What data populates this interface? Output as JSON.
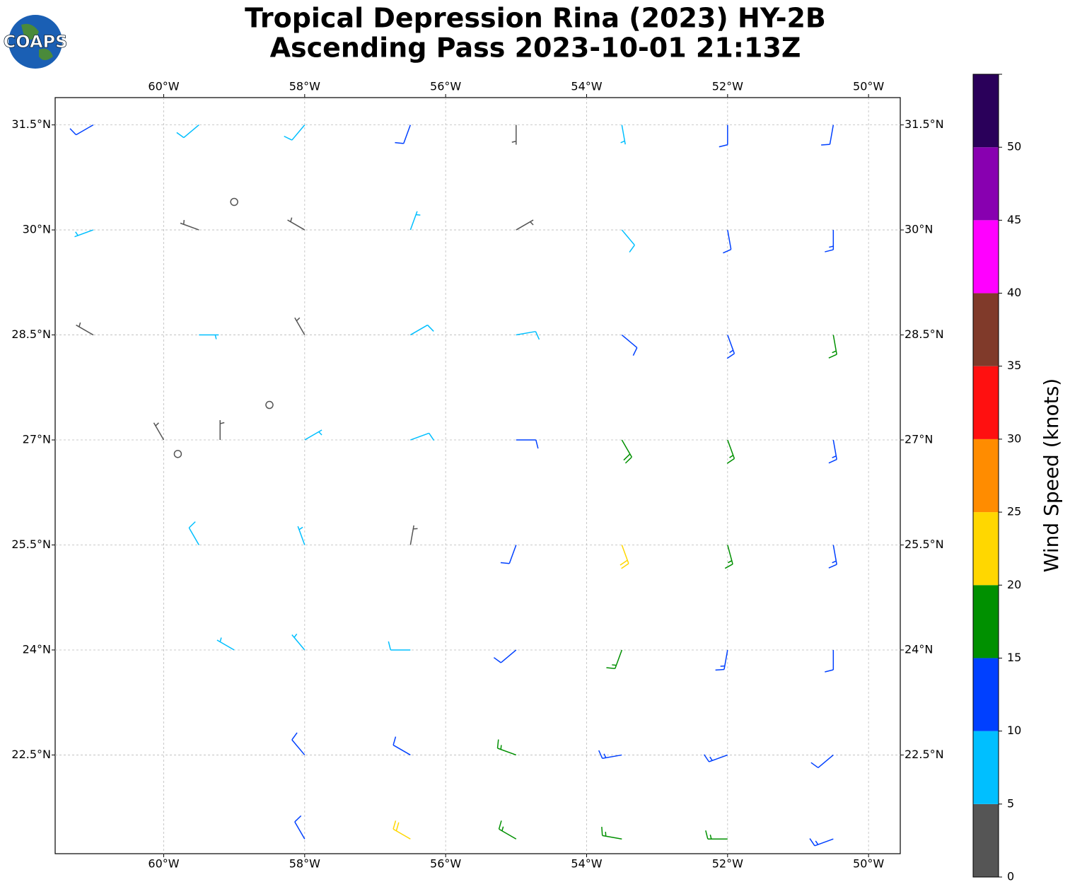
{
  "chart_data": {
    "type": "barbs",
    "title": [
      "Tropical Depression Rina (2023) HY-2B",
      "Ascending Pass 2023-10-01 21:13Z"
    ],
    "logo": "COAPS",
    "xlim": [
      -61.54,
      -49.55
    ],
    "ylim": [
      21.09,
      31.89
    ],
    "xticks": [
      {
        "value": -60,
        "label": "60°W"
      },
      {
        "value": -58,
        "label": "58°W"
      },
      {
        "value": -56,
        "label": "56°W"
      },
      {
        "value": -54,
        "label": "54°W"
      },
      {
        "value": -52,
        "label": "52°W"
      },
      {
        "value": -50,
        "label": "50°W"
      }
    ],
    "yticks": [
      {
        "value": 22.5,
        "label": "22.5°N"
      },
      {
        "value": 24,
        "label": "24°N"
      },
      {
        "value": 25.5,
        "label": "25.5°N"
      },
      {
        "value": 27,
        "label": "27°N"
      },
      {
        "value": 28.5,
        "label": "28.5°N"
      },
      {
        "value": 30,
        "label": "30°N"
      },
      {
        "value": 31.5,
        "label": "31.5°N"
      }
    ],
    "grid": true,
    "barbs": [
      {
        "lon": -61,
        "lat": 31.5,
        "speed": 12,
        "dir": 240
      },
      {
        "lon": -59.5,
        "lat": 31.5,
        "speed": 8,
        "dir": 230
      },
      {
        "lon": -58,
        "lat": 31.5,
        "speed": 8,
        "dir": 220
      },
      {
        "lon": -56.5,
        "lat": 31.5,
        "speed": 11,
        "dir": 200
      },
      {
        "lon": -55,
        "lat": 31.5,
        "speed": 4,
        "dir": 180
      },
      {
        "lon": -53.5,
        "lat": 31.5,
        "speed": 7,
        "dir": 170
      },
      {
        "lon": -52,
        "lat": 31.5,
        "speed": 11,
        "dir": 180
      },
      {
        "lon": -50.5,
        "lat": 31.5,
        "speed": 12,
        "dir": 190
      },
      {
        "lon": -61,
        "lat": 30,
        "speed": 7,
        "dir": 250
      },
      {
        "lon": -59.5,
        "lat": 30,
        "speed": 3,
        "dir": 290
      },
      {
        "lon": -58,
        "lat": 30,
        "speed": 4,
        "dir": 300
      },
      {
        "lon": -56.5,
        "lat": 30,
        "speed": 7,
        "dir": 20
      },
      {
        "lon": -55,
        "lat": 30,
        "speed": 4,
        "dir": 60
      },
      {
        "lon": -53.5,
        "lat": 30,
        "speed": 8,
        "dir": 140
      },
      {
        "lon": -52,
        "lat": 30,
        "speed": 12,
        "dir": 170
      },
      {
        "lon": -50.5,
        "lat": 30,
        "speed": 13,
        "dir": 180
      },
      {
        "lon": -61,
        "lat": 28.5,
        "speed": 4,
        "dir": 300
      },
      {
        "lon": -59.5,
        "lat": 28.5,
        "speed": 6,
        "dir": 90
      },
      {
        "lon": -58,
        "lat": 28.5,
        "speed": 3,
        "dir": 330
      },
      {
        "lon": -56.5,
        "lat": 28.5,
        "speed": 8,
        "dir": 60
      },
      {
        "lon": -55,
        "lat": 28.5,
        "speed": 9,
        "dir": 80
      },
      {
        "lon": -53.5,
        "lat": 28.5,
        "speed": 12,
        "dir": 130
      },
      {
        "lon": -52,
        "lat": 28.5,
        "speed": 14,
        "dir": 160
      },
      {
        "lon": -50.5,
        "lat": 28.5,
        "speed": 17,
        "dir": 170
      },
      {
        "lon": -60,
        "lat": 27,
        "speed": 3,
        "dir": 330
      },
      {
        "lon": -59.2,
        "lat": 27,
        "speed": 3,
        "dir": 0
      },
      {
        "lon": -58,
        "lat": 27,
        "speed": 6,
        "dir": 60
      },
      {
        "lon": -56.5,
        "lat": 27,
        "speed": 9,
        "dir": 70
      },
      {
        "lon": -55,
        "lat": 27,
        "speed": 12,
        "dir": 90
      },
      {
        "lon": -53.5,
        "lat": 27,
        "speed": 18,
        "dir": 150
      },
      {
        "lon": -52,
        "lat": 27,
        "speed": 17,
        "dir": 160
      },
      {
        "lon": -50.5,
        "lat": 27,
        "speed": 13,
        "dir": 170
      },
      {
        "lon": -59.5,
        "lat": 25.5,
        "speed": 8,
        "dir": 330
      },
      {
        "lon": -58,
        "lat": 25.5,
        "speed": 7,
        "dir": 340
      },
      {
        "lon": -56.5,
        "lat": 25.5,
        "speed": 4,
        "dir": 10
      },
      {
        "lon": -55,
        "lat": 25.5,
        "speed": 12,
        "dir": 200
      },
      {
        "lon": -53.5,
        "lat": 25.5,
        "speed": 21,
        "dir": 160
      },
      {
        "lon": -52,
        "lat": 25.5,
        "speed": 16,
        "dir": 165
      },
      {
        "lon": -50.5,
        "lat": 25.5,
        "speed": 13,
        "dir": 170
      },
      {
        "lon": -59,
        "lat": 24,
        "speed": 7,
        "dir": 300
      },
      {
        "lon": -58,
        "lat": 24,
        "speed": 7,
        "dir": 320
      },
      {
        "lon": -56.5,
        "lat": 24,
        "speed": 8,
        "dir": 270
      },
      {
        "lon": -55,
        "lat": 24,
        "speed": 12,
        "dir": 230
      },
      {
        "lon": -53.5,
        "lat": 24,
        "speed": 16,
        "dir": 200
      },
      {
        "lon": -52,
        "lat": 24,
        "speed": 14,
        "dir": 190
      },
      {
        "lon": -50.5,
        "lat": 24,
        "speed": 12,
        "dir": 180
      },
      {
        "lon": -58,
        "lat": 22.5,
        "speed": 12,
        "dir": 320
      },
      {
        "lon": -56.5,
        "lat": 22.5,
        "speed": 11,
        "dir": 300
      },
      {
        "lon": -55,
        "lat": 22.5,
        "speed": 16,
        "dir": 290
      },
      {
        "lon": -53.5,
        "lat": 22.5,
        "speed": 14,
        "dir": 260
      },
      {
        "lon": -52,
        "lat": 22.5,
        "speed": 14,
        "dir": 250
      },
      {
        "lon": -50.5,
        "lat": 22.5,
        "speed": 12,
        "dir": 230
      },
      {
        "lon": -58,
        "lat": 21.3,
        "speed": 12,
        "dir": 330
      },
      {
        "lon": -56.5,
        "lat": 21.3,
        "speed": 21,
        "dir": 300
      },
      {
        "lon": -55,
        "lat": 21.3,
        "speed": 17,
        "dir": 300
      },
      {
        "lon": -53.5,
        "lat": 21.3,
        "speed": 16,
        "dir": 280
      },
      {
        "lon": -52,
        "lat": 21.3,
        "speed": 16,
        "dir": 270
      },
      {
        "lon": -50.5,
        "lat": 21.3,
        "speed": 14,
        "dir": 250
      },
      {
        "lon": -59,
        "lat": 30.4,
        "speed": 1,
        "dir": 0
      },
      {
        "lon": -58.5,
        "lat": 27.5,
        "speed": 1,
        "dir": 0
      },
      {
        "lon": -59.8,
        "lat": 26.8,
        "speed": 1,
        "dir": 0
      }
    ],
    "colorbar": {
      "label": "Wind Speed (knots)",
      "bounds": [
        0,
        5,
        10,
        15,
        20,
        25,
        30,
        35,
        40,
        45,
        50,
        55
      ],
      "colors": [
        "#555555",
        "#00bfff",
        "#0040ff",
        "#009000",
        "#ffd700",
        "#ff8c00",
        "#ff1010",
        "#803a2a",
        "#ff00ff",
        "#8800b0",
        "#2a005a"
      ],
      "ticks": [
        0,
        5,
        10,
        15,
        20,
        25,
        30,
        35,
        40,
        45,
        50
      ]
    }
  }
}
